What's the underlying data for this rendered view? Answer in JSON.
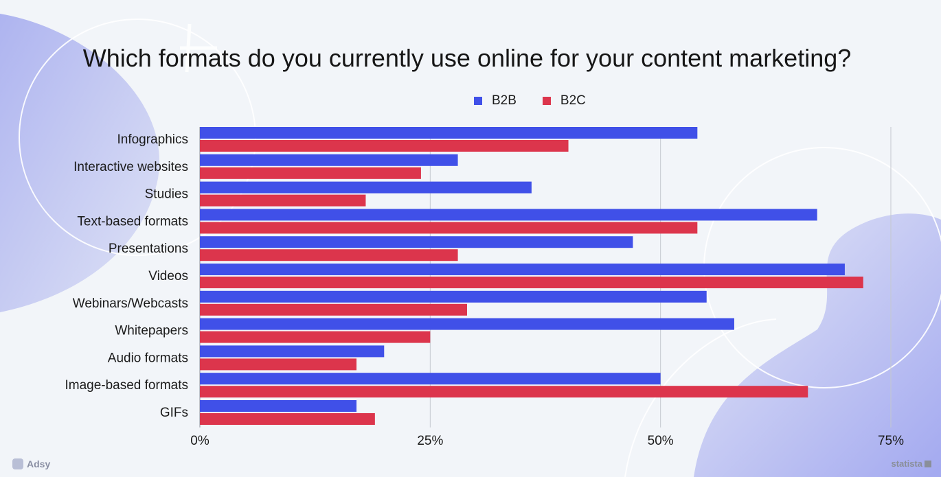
{
  "chart_data": {
    "type": "bar",
    "orientation": "horizontal",
    "title": "Which formats do you currently use online for your content marketing?",
    "categories": [
      "Infographics",
      "Interactive websites",
      "Studies",
      "Text-based formats",
      "Presentations",
      "Videos",
      "Webinars/Webcasts",
      "Whitepapers",
      "Audio formats",
      "Image-based formats",
      "GIFs"
    ],
    "series": [
      {
        "name": "B2B",
        "color": "#4050e8",
        "values": [
          54,
          28,
          36,
          67,
          47,
          70,
          55,
          58,
          20,
          50,
          17
        ]
      },
      {
        "name": "B2C",
        "color": "#dc354c",
        "values": [
          40,
          24,
          18,
          54,
          28,
          72,
          29,
          25,
          17,
          66,
          19
        ]
      }
    ],
    "xlim": [
      0,
      75
    ],
    "xticks": [
      "0%",
      "25%",
      "50%",
      "75%"
    ],
    "grid": true,
    "legend": "top-center"
  },
  "branding": {
    "left": "Adsy",
    "right": "statista"
  }
}
